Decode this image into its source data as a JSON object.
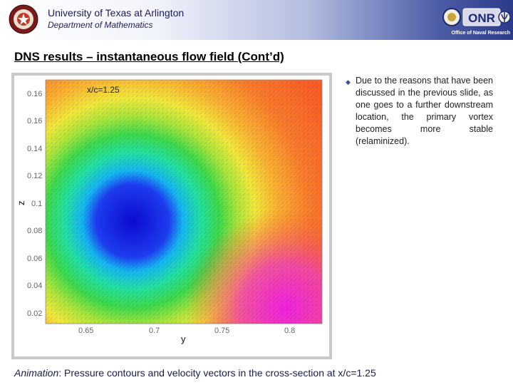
{
  "header": {
    "university": "University of Texas at Arlington",
    "department": "Department of Mathematics",
    "sponsor_logo_text": "Office of Naval Research",
    "sponsor_acronym": "ONR"
  },
  "slide": {
    "title": "DNS results – instantaneous flow field (Cont’d)",
    "bullet": "Due to the reasons that have been discussed in the previous slide, as one goes to a further downstream location, the primary vortex becomes more stable (relaminized).",
    "caption_label": "Animation",
    "caption_text": ": Pressure contours and velocity vectors in the cross-section at x/c=1.25"
  },
  "plot": {
    "annotation": "x/c=1.25",
    "xlabel": "y",
    "ylabel": "z",
    "xticks": [
      "0.65",
      "0.7",
      "0.75",
      "0.8"
    ],
    "yticks": [
      "0.16",
      "0.16",
      "0.14",
      "0.12",
      "0.1",
      "0.08",
      "0.06",
      "0.04",
      "0.02"
    ]
  }
}
